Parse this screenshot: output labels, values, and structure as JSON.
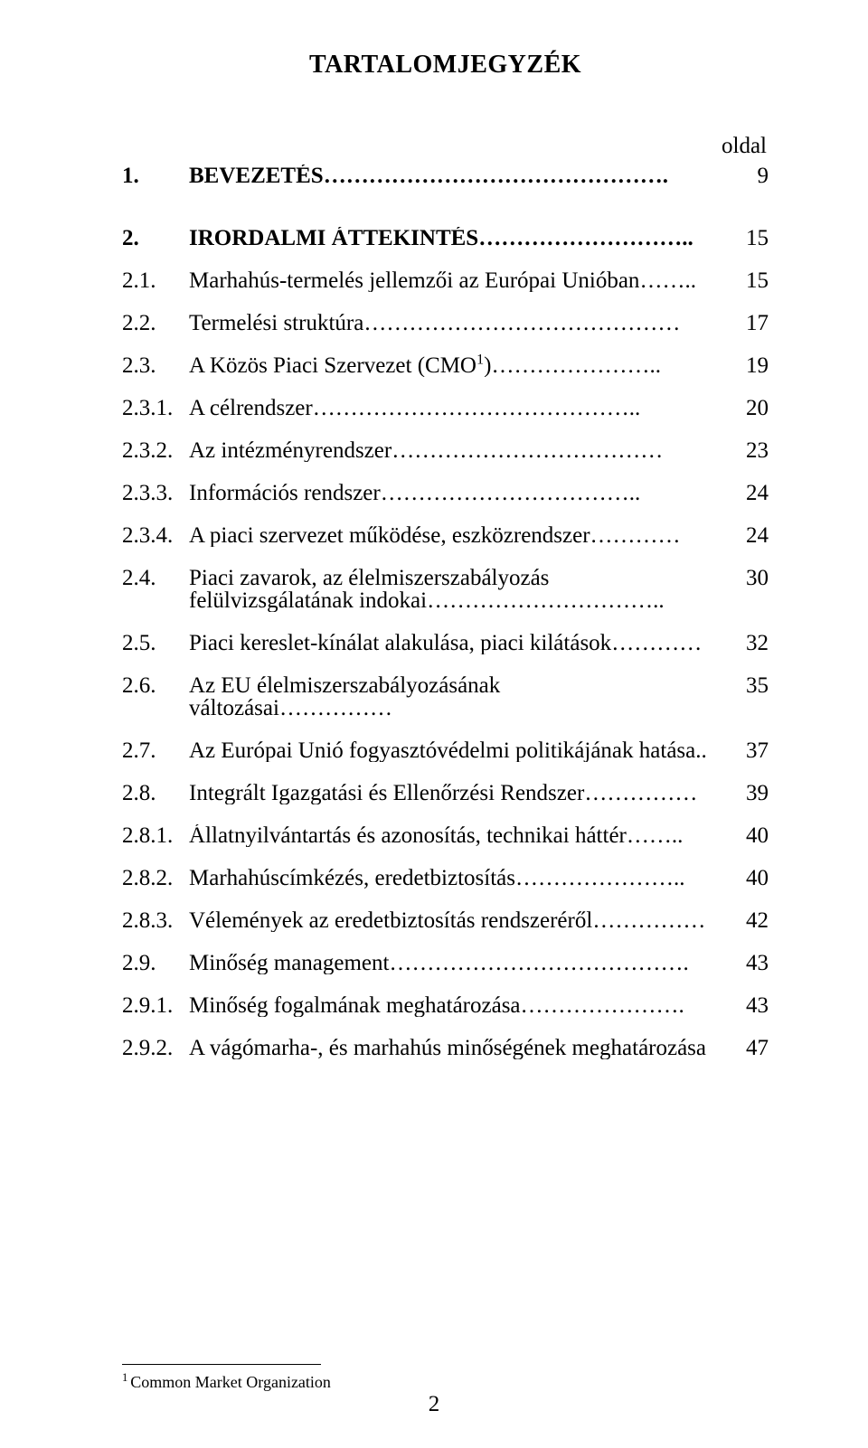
{
  "heading": "TARTALOMJEGYZÉK",
  "page_column_header": "oldal",
  "page_number": "2",
  "footnote": {
    "mark": "1",
    "text": "Common Market Organization"
  },
  "entries": [
    {
      "num": "1.",
      "bold": true,
      "title": "BEVEZETÉS",
      "dots": "……………………………………….",
      "page": "9",
      "gap_after": true
    },
    {
      "num": "2.",
      "bold": true,
      "title": "IRORDALMI  ÁTTEKINTÉS",
      "dots": "………………………..",
      "page": "15"
    },
    {
      "num": "2.1.",
      "bold": false,
      "title": "Marhahús-termelés jellemzői az Európai Unióban",
      "dots": "……..",
      "page": "15"
    },
    {
      "num": "2.2.",
      "bold": false,
      "title": "Termelési struktúra",
      "dots": "……………………………………",
      "page": "17"
    },
    {
      "num": "2.3.",
      "bold": false,
      "title": "A Közös Piaci Szervezet (CMO",
      "sup": "1",
      "title_tail": ")",
      "dots": "…………………..",
      "page": "19"
    },
    {
      "num": "2.3.1.",
      "bold": false,
      "title": "A célrendszer",
      "dots": "……………………………………..",
      "page": "20"
    },
    {
      "num": "2.3.2.",
      "bold": false,
      "title": "Az intézményrendszer",
      "dots": "………………………………",
      "page": "23"
    },
    {
      "num": "2.3.3.",
      "bold": false,
      "title": "Információs rendszer",
      "dots": "……………………………..",
      "page": "24"
    },
    {
      "num": "2.3.4.",
      "bold": false,
      "title": "A piaci szervezet működése, eszközrendszer",
      "dots": "…………",
      "page": "24"
    },
    {
      "num": "2.4.",
      "bold": false,
      "multiline": true,
      "line1": "Piaci zavarok, az élelmiszerszabályozás",
      "line2": "felülvizsgálatának indokai",
      "dots": "…………………………..",
      "page": "30"
    },
    {
      "num": "2.5.",
      "bold": false,
      "title": "Piaci kereslet-kínálat alakulása, piaci kilátások",
      "dots": "…………",
      "page": "32"
    },
    {
      "num": "2.6.",
      "bold": false,
      "title": "Az EU élelmiszerszabályozásának változásai",
      "dots": "……………",
      "page": "35"
    },
    {
      "num": "2.7.",
      "bold": false,
      "title": "Az Európai Unió fogyasztóvédelmi politikájának hatása",
      "dots": "..",
      "page": "37"
    },
    {
      "num": "2.8.",
      "bold": false,
      "title": "Integrált Igazgatási és Ellenőrzési Rendszer",
      "dots": "……………",
      "page": "39"
    },
    {
      "num": "2.8.1.",
      "bold": false,
      "title": "Állatnyilvántartás és azonosítás, technikai háttér",
      "dots": "……..",
      "page": "40"
    },
    {
      "num": "2.8.2.",
      "bold": false,
      "title": "Marhahúscímkézés, eredetbiztosítás",
      "dots": "…………………..",
      "page": "40"
    },
    {
      "num": "2.8.3.",
      "bold": false,
      "title": "Vélemények az eredetbiztosítás rendszeréről",
      "dots": "……………",
      "page": "42"
    },
    {
      "num": "2.9.",
      "bold": false,
      "title": "Minőség management",
      "dots": "………………………………….",
      "page": "43"
    },
    {
      "num": "2.9.1.",
      "bold": false,
      "title": "Minőség fogalmának meghatározása",
      "dots": "………………….",
      "page": "43"
    },
    {
      "num": "2.9.2.",
      "bold": false,
      "title": "A vágómarha-, és marhahús minőségének meghatározása",
      "dots": "",
      "page": "47"
    }
  ]
}
